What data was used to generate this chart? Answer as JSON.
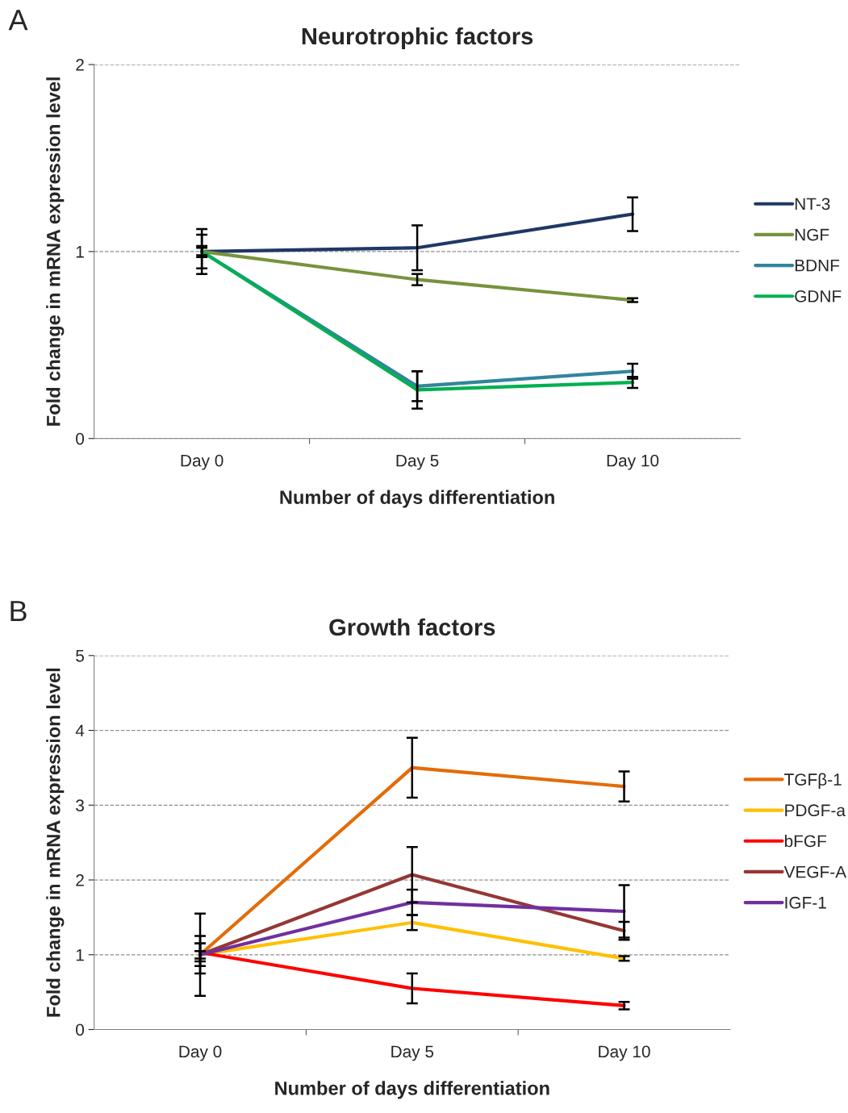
{
  "chart_data": [
    {
      "type": "line",
      "title": "Neurotrophic factors",
      "xlabel": "Number of days differentiation",
      "ylabel": "Fold change in mRNA expression level",
      "annotations": [
        "A"
      ],
      "categories": [
        "Day 0",
        "Day 5",
        "Day 10"
      ],
      "ylim": [
        0,
        2
      ],
      "yticks": [
        0,
        1,
        2
      ],
      "grid": "y",
      "legend": "right",
      "marker": "none",
      "line_style": "solid",
      "series": [
        {
          "name": "NT-3",
          "color": "#1f3864",
          "values": [
            1,
            1.02,
            1.2
          ],
          "errors": [
            0.03,
            0.12,
            0.09
          ]
        },
        {
          "name": "NGF",
          "color": "#77933c",
          "values": [
            1,
            0.85,
            0.74
          ],
          "errors": [
            0.12,
            0.03,
            0.01
          ]
        },
        {
          "name": "BDNF",
          "color": "#31859c",
          "values": [
            1,
            0.28,
            0.36
          ],
          "errors": [
            0.09,
            0.08,
            0.04
          ]
        },
        {
          "name": "GDNF",
          "color": "#00b050",
          "values": [
            1,
            0.26,
            0.3
          ],
          "errors": [
            0.02,
            0.1,
            0.03
          ]
        }
      ]
    },
    {
      "type": "line",
      "title": "Growth factors",
      "xlabel": "Number of days differentiation",
      "ylabel": "Fold change in mRNA expression level",
      "annotations": [
        "B"
      ],
      "categories": [
        "Day 0",
        "Day 5",
        "Day 10"
      ],
      "ylim": [
        0,
        5
      ],
      "yticks": [
        0,
        1,
        2,
        3,
        4,
        5
      ],
      "grid": "y",
      "legend": "right",
      "marker": "none",
      "line_style": "solid",
      "series": [
        {
          "name": "TGFβ-1",
          "color": "#e36c09",
          "values": [
            1,
            3.5,
            3.25
          ],
          "errors": [
            0.55,
            0.4,
            0.2
          ]
        },
        {
          "name": "PDGF-a",
          "color": "#ffc000",
          "values": [
            1,
            1.43,
            0.95
          ],
          "errors": [
            0.05,
            0.1,
            0.03
          ]
        },
        {
          "name": "bFGF",
          "color": "#ff0000",
          "values": [
            1.03,
            0.55,
            0.32
          ],
          "errors": [
            0.12,
            0.2,
            0.05
          ]
        },
        {
          "name": "VEGF-A",
          "color": "#953735",
          "values": [
            1,
            2.07,
            1.32
          ],
          "errors": [
            0.25,
            0.37,
            0.12
          ]
        },
        {
          "name": "IGF-1",
          "color": "#7030a0",
          "values": [
            1,
            1.7,
            1.58
          ],
          "errors": [
            0.15,
            0.17,
            0.35
          ]
        }
      ]
    }
  ]
}
